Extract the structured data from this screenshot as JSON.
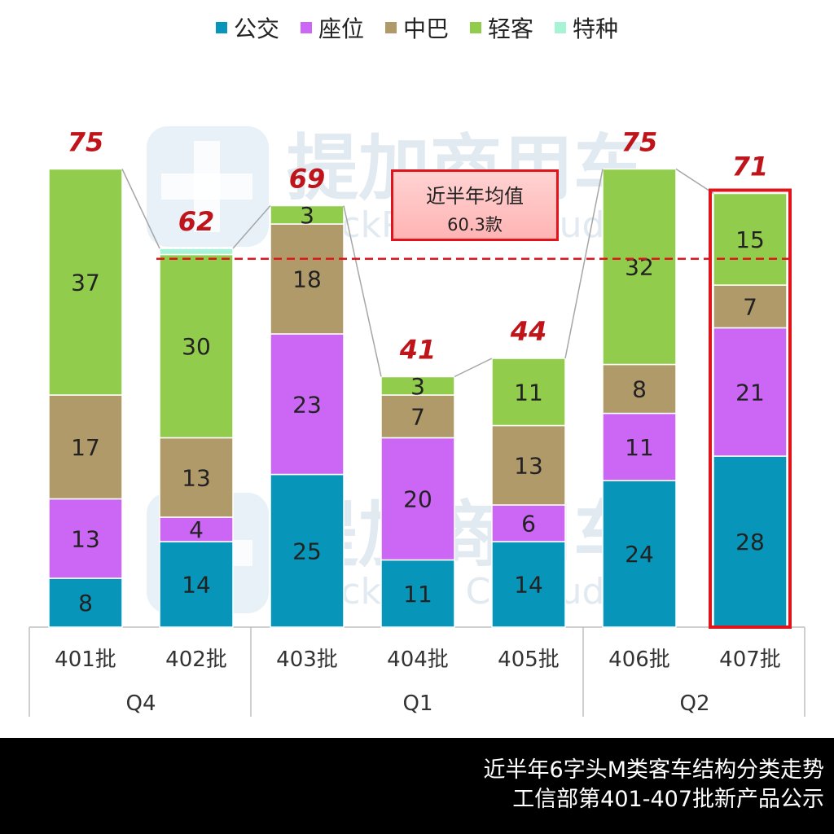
{
  "legend": [
    {
      "name": "公交",
      "color": "#0796b9"
    },
    {
      "name": "座位",
      "color": "#cb66f5"
    },
    {
      "name": "中巴",
      "color": "#b19a6a"
    },
    {
      "name": "轻客",
      "color": "#91cc4d"
    },
    {
      "name": "特种",
      "color": "#a8f2d6"
    }
  ],
  "average_box": {
    "title": "近半年均值",
    "value": "60.3款"
  },
  "watermark": {
    "cn": "提加商用车",
    "en": "TruckPlus CV studio"
  },
  "footer": {
    "line1": "近半年6字头M类客车结构分类走势",
    "line2": "工信部第401-407批新产品公示"
  },
  "chart_data": {
    "type": "bar",
    "stacked": true,
    "categories": [
      "401批",
      "402批",
      "403批",
      "404批",
      "405批",
      "406批",
      "407批"
    ],
    "groups": [
      {
        "label": "Q4",
        "categories": [
          "401批",
          "402批"
        ]
      },
      {
        "label": "Q1",
        "categories": [
          "403批",
          "404批",
          "405批"
        ]
      },
      {
        "label": "Q2",
        "categories": [
          "406批",
          "407批"
        ]
      }
    ],
    "series": [
      {
        "name": "公交",
        "values": [
          8,
          14,
          25,
          11,
          14,
          24,
          28
        ]
      },
      {
        "name": "座位",
        "values": [
          13,
          4,
          23,
          20,
          6,
          11,
          21
        ]
      },
      {
        "name": "中巴",
        "values": [
          17,
          13,
          18,
          7,
          13,
          8,
          7
        ]
      },
      {
        "name": "轻客",
        "values": [
          37,
          30,
          3,
          3,
          11,
          32,
          15
        ]
      },
      {
        "name": "特种",
        "values": [
          0,
          1,
          0,
          0,
          0,
          0,
          0
        ]
      }
    ],
    "totals": [
      75,
      62,
      69,
      41,
      44,
      75,
      71
    ],
    "average_line": 60.3,
    "highlighted_category": "407批",
    "ylim": [
      0,
      80
    ]
  }
}
